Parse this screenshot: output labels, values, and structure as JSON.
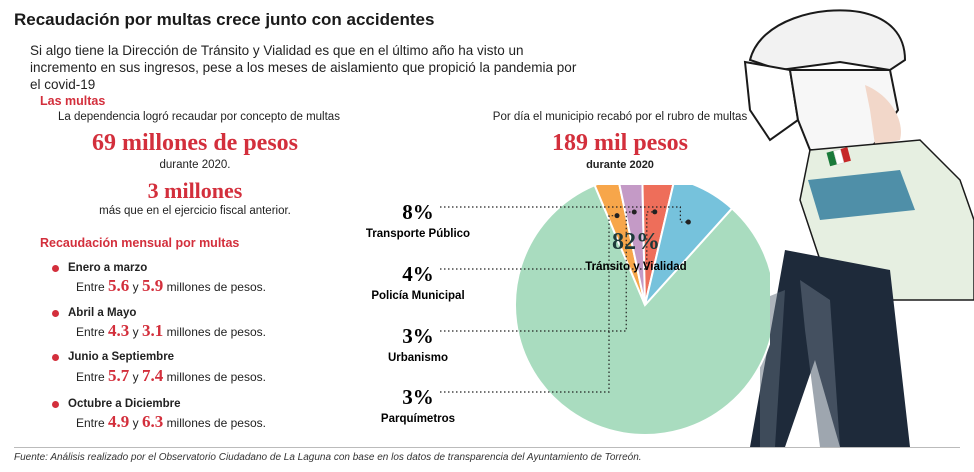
{
  "header": {
    "title": "Recaudación por multas crece junto con accidentes",
    "intro": "Si algo tiene la Dirección de Tránsito y Vialidad es que en el último año ha visto un incremento en sus ingresos, pese a los meses de aislamiento que propició la pandemia por el covid-19"
  },
  "left": {
    "section_title": "Las multas",
    "subtitle": "La dependencia logró recaudar por concepto de multas",
    "big_amount": "69 millones de pesos",
    "big_amount_note": "durante 2020.",
    "second_amount": "3 millones",
    "second_amount_note": "más que en el ejercicio fiscal anterior.",
    "monthly_title": "Recaudación mensual por multas",
    "periods": [
      {
        "name": "Enero a marzo",
        "pre": "Entre",
        "a": "5.6",
        "mid": "y",
        "b": "5.9",
        "post": "millones de pesos."
      },
      {
        "name": "Abril a Mayo",
        "pre": "Entre",
        "a": "4.3",
        "mid": "y",
        "b": "3.1",
        "post": "millones de pesos."
      },
      {
        "name": "Junio a Septiembre",
        "pre": "Entre",
        "a": "5.7",
        "mid": "y",
        "b": "7.4",
        "post": "millones de pesos."
      },
      {
        "name": "Octubre a Diciembre",
        "pre": "Entre",
        "a": "4.9",
        "mid": "y",
        "b": "6.3",
        "post": "millones de pesos."
      }
    ]
  },
  "right": {
    "subtitle": "Por día el municipio recabó por el rubro de multas",
    "big_amount": "189 mil pesos",
    "big_amount_note": "durante 2020"
  },
  "chart_data": {
    "type": "pie",
    "title": "",
    "slices": [
      {
        "label": "Tránsito y Vialidad",
        "value": 82,
        "display": "82%",
        "color": "#a9dcbf"
      },
      {
        "label": "Parquímetros",
        "value": 3,
        "display": "3%",
        "color": "#f7a64a"
      },
      {
        "label": "Urbanismo",
        "value": 3,
        "display": "3%",
        "color": "#c49ac6"
      },
      {
        "label": "Policía Municipal",
        "value": 4,
        "display": "4%",
        "color": "#ee6e5a"
      },
      {
        "label": "Transporte Público",
        "value": 8,
        "display": "8%",
        "color": "#76c2dc"
      }
    ],
    "legend": "none"
  },
  "footer": {
    "source": "Fuente: Análisis realizado por el Observatorio Ciudadano de La Laguna con base en los datos de transparencia del Ayuntamiento de Torreón."
  },
  "colors": {
    "accent_red": "#d32f3c",
    "text": "#222222"
  }
}
